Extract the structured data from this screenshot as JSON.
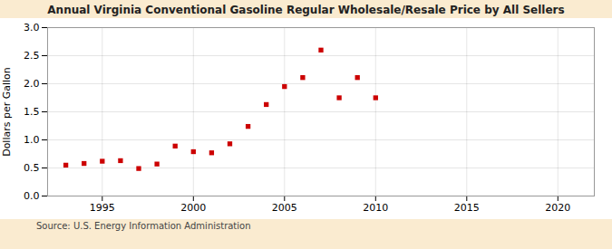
{
  "chart_data": {
    "type": "scatter",
    "title": "Annual Virginia Conventional Gasoline Regular Wholesale/Resale Price by All Sellers",
    "ylabel": "Dollars per Gallon",
    "annotations": [
      "Source: U.S. Energy Information Administration"
    ],
    "x": [
      1993,
      1994,
      1995,
      1996,
      1997,
      1998,
      1999,
      2000,
      2001,
      2002,
      2003,
      2004,
      2005,
      2006,
      2007,
      2008,
      2009,
      2010
    ],
    "values": [
      0.55,
      0.58,
      0.62,
      0.63,
      0.49,
      0.57,
      0.89,
      0.79,
      0.77,
      0.93,
      1.24,
      1.63,
      1.95,
      2.11,
      2.6,
      1.75,
      2.11,
      1.75
    ],
    "color": "#cc0000",
    "marker": "square",
    "xlim": [
      1992,
      2022
    ],
    "ylim": [
      0.0,
      3.0
    ],
    "xticks": [
      1995,
      2000,
      2005,
      2010,
      2015,
      2020
    ],
    "yticks": [
      {
        "value": 0.0,
        "label": "0.0"
      },
      0.5,
      {
        "value": 1.0,
        "label": "1.0"
      },
      1.5,
      {
        "value": 2.0,
        "label": "2.0"
      },
      2.5,
      {
        "value": 3.0,
        "label": "3.0"
      }
    ],
    "grid": true
  }
}
